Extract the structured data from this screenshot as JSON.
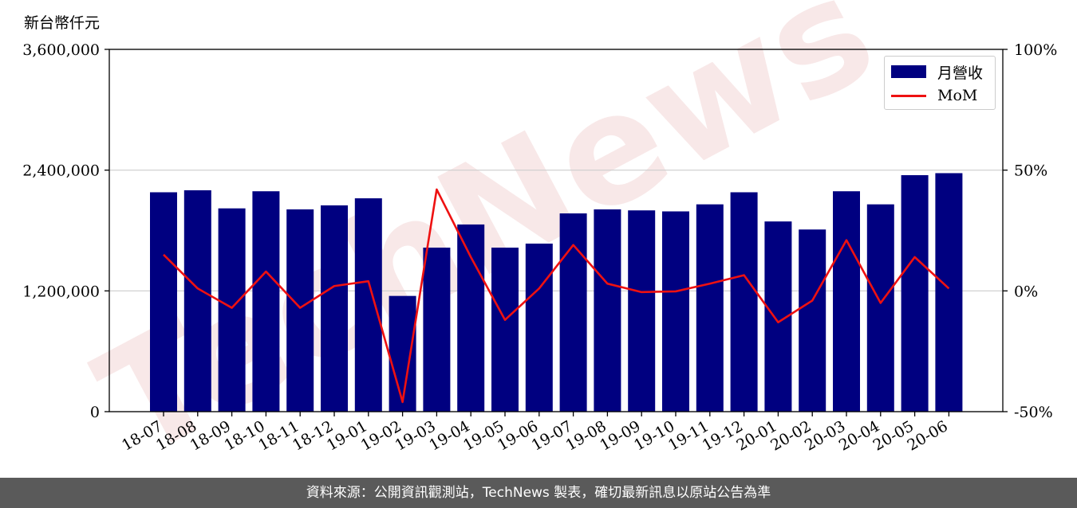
{
  "unit_label": "新台幣仟元",
  "footer": "資料來源：公開資訊觀測站，TechNews 製表，確切最新訊息以原站公告為準",
  "watermark": "TechNews",
  "colors": {
    "bar": "#000080",
    "line": "#ee1111",
    "grid": "#cccccc",
    "footer_bg": "#5a5a5a"
  },
  "chart_data": {
    "type": "bar",
    "categories": [
      "18-07",
      "18-08",
      "18-09",
      "18-10",
      "18-11",
      "18-12",
      "19-01",
      "19-02",
      "19-03",
      "19-04",
      "19-05",
      "19-06",
      "19-07",
      "19-08",
      "19-09",
      "19-10",
      "19-11",
      "19-12",
      "20-01",
      "20-02",
      "20-03",
      "20-04",
      "20-05",
      "20-06"
    ],
    "series": [
      {
        "name": "月營收",
        "type": "bar",
        "axis": "left",
        "values": [
          2180000,
          2200000,
          2020000,
          2190000,
          2010000,
          2050000,
          2120000,
          1150000,
          1630000,
          1860000,
          1630000,
          1670000,
          1970000,
          2010000,
          2000000,
          1990000,
          2060000,
          2180000,
          1890000,
          1810000,
          2190000,
          2060000,
          2350000,
          2370000
        ]
      },
      {
        "name": "MoM",
        "type": "line",
        "axis": "right",
        "values": [
          15,
          1,
          -7,
          8,
          -7,
          2,
          4,
          -46,
          42,
          14,
          -12,
          1,
          19,
          3,
          -0.5,
          -0.2,
          3,
          6.5,
          -13,
          -4,
          21,
          -5,
          14,
          1
        ]
      }
    ],
    "left_axis": {
      "min": 0,
      "max": 3600000,
      "ticks": [
        "0",
        "1,200,000",
        "2,400,000",
        "3,600,000"
      ]
    },
    "right_axis": {
      "min": -50,
      "max": 100,
      "ticks": [
        "-50%",
        "0%",
        "50%",
        "100%"
      ]
    },
    "grid": "horizontal",
    "legend_position": "top-right"
  }
}
